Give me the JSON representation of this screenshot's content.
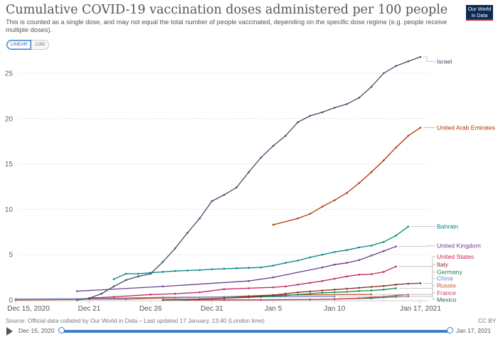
{
  "header": {
    "title": "Cumulative COVID-19 vaccination doses administered per 100 people",
    "subtitle": "This is counted as a single dose, and may not equal the total number of people vaccinated, depending on the specific dose regime (e.g. people receive multiple doses).",
    "logo_line1": "Our World",
    "logo_line2": "in Data"
  },
  "scale_toggle": {
    "linear": "LINEAR",
    "log": "LOG",
    "selected": "LINEAR"
  },
  "footer": {
    "source": "Source: Official data collated by Our World in Data – Last updated 17 January, 13:40 (London time)",
    "license": "CC BY"
  },
  "timeline": {
    "start": "Dec 15, 2020",
    "end": "Jan 17, 2021"
  },
  "chart_data": {
    "type": "line",
    "title": "Cumulative COVID-19 vaccination doses administered per 100 people",
    "xlabel": "",
    "ylabel": "",
    "x_start": "2020-12-15",
    "x_range_days": [
      0,
      33
    ],
    "ylim": [
      0,
      27.5
    ],
    "yticks": [
      0,
      5,
      10,
      15,
      20,
      25
    ],
    "xticks": [
      {
        "day": 0,
        "label": "Dec 15, 2020"
      },
      {
        "day": 6,
        "label": "Dec 21"
      },
      {
        "day": 11,
        "label": "Dec 26"
      },
      {
        "day": 16,
        "label": "Dec 31"
      },
      {
        "day": 21,
        "label": "Jan 5"
      },
      {
        "day": 26,
        "label": "Jan 10"
      },
      {
        "day": 33,
        "label": "Jan 17, 2021"
      }
    ],
    "grid": true,
    "legend": "right (end-of-line labels)",
    "series": [
      {
        "name": "Israel",
        "color": "#3c4e66",
        "points": [
          [
            5,
            0.0
          ],
          [
            6,
            0.2
          ],
          [
            7,
            0.7
          ],
          [
            8,
            1.5
          ],
          [
            9,
            2.2
          ],
          [
            10,
            2.6
          ],
          [
            11,
            2.9
          ],
          [
            12,
            4.2
          ],
          [
            13,
            5.7
          ],
          [
            14,
            7.4
          ],
          [
            15,
            9.0
          ],
          [
            16,
            10.9
          ],
          [
            17,
            11.6
          ],
          [
            18,
            12.4
          ],
          [
            19,
            14.1
          ],
          [
            20,
            15.7
          ],
          [
            21,
            17.0
          ],
          [
            22,
            18.1
          ],
          [
            23,
            19.6
          ],
          [
            24,
            20.3
          ],
          [
            25,
            20.7
          ],
          [
            26,
            21.2
          ],
          [
            27,
            21.6
          ],
          [
            28,
            22.3
          ],
          [
            29,
            23.5
          ],
          [
            30,
            25.0
          ],
          [
            31,
            25.8
          ],
          [
            32,
            26.3
          ],
          [
            33,
            26.8
          ]
        ]
      },
      {
        "name": "United Arab Emirates",
        "color": "#b13507",
        "points": [
          [
            21,
            8.3
          ],
          [
            23,
            9.0
          ],
          [
            24,
            9.5
          ],
          [
            25,
            10.3
          ],
          [
            26,
            11.0
          ],
          [
            27,
            11.8
          ],
          [
            28,
            12.9
          ],
          [
            29,
            14.1
          ],
          [
            30,
            15.4
          ],
          [
            31,
            16.8
          ],
          [
            32,
            18.1
          ],
          [
            33,
            19.0
          ]
        ]
      },
      {
        "name": "Bahrain",
        "color": "#00847e",
        "points": [
          [
            8,
            2.3
          ],
          [
            9,
            2.9
          ],
          [
            10,
            2.9
          ],
          [
            11,
            3.0
          ],
          [
            12,
            3.1
          ],
          [
            13,
            3.2
          ],
          [
            14,
            3.25
          ],
          [
            15,
            3.3
          ],
          [
            16,
            3.4
          ],
          [
            17,
            3.45
          ],
          [
            18,
            3.5
          ],
          [
            19,
            3.55
          ],
          [
            20,
            3.6
          ],
          [
            21,
            3.8
          ],
          [
            22,
            4.1
          ],
          [
            23,
            4.35
          ],
          [
            24,
            4.7
          ],
          [
            25,
            5.0
          ],
          [
            26,
            5.3
          ],
          [
            27,
            5.5
          ],
          [
            28,
            5.8
          ],
          [
            29,
            6.0
          ],
          [
            30,
            6.4
          ],
          [
            31,
            7.1
          ],
          [
            32,
            8.1
          ]
        ]
      },
      {
        "name": "United Kingdom",
        "color": "#6d3e91",
        "points": [
          [
            5,
            0.98
          ],
          [
            12,
            1.5
          ],
          [
            19,
            2.1
          ],
          [
            21,
            2.5
          ],
          [
            25,
            3.6
          ],
          [
            26,
            3.9
          ],
          [
            27,
            4.1
          ],
          [
            28,
            4.4
          ],
          [
            29,
            4.9
          ],
          [
            30,
            5.4
          ],
          [
            31,
            5.9
          ]
        ]
      },
      {
        "name": "United States",
        "color": "#c5265b",
        "points": [
          [
            6,
            0.2
          ],
          [
            8,
            0.35
          ],
          [
            11,
            0.6
          ],
          [
            13,
            0.7
          ],
          [
            15,
            0.85
          ],
          [
            17,
            1.2
          ],
          [
            19,
            1.3
          ],
          [
            21,
            1.4
          ],
          [
            22,
            1.5
          ],
          [
            23,
            1.7
          ],
          [
            24,
            1.9
          ],
          [
            25,
            2.1
          ],
          [
            26,
            2.35
          ],
          [
            27,
            2.6
          ],
          [
            28,
            2.8
          ],
          [
            29,
            2.85
          ],
          [
            30,
            3.1
          ],
          [
            31,
            3.7
          ]
        ]
      },
      {
        "name": "Italy",
        "color": "#8b2a2a",
        "points": [
          [
            12,
            0.02
          ],
          [
            15,
            0.1
          ],
          [
            17,
            0.2
          ],
          [
            19,
            0.35
          ],
          [
            20,
            0.45
          ],
          [
            21,
            0.55
          ],
          [
            22,
            0.7
          ],
          [
            23,
            0.85
          ],
          [
            24,
            0.95
          ],
          [
            25,
            1.05
          ],
          [
            26,
            1.15
          ],
          [
            27,
            1.25
          ],
          [
            28,
            1.35
          ],
          [
            29,
            1.45
          ],
          [
            30,
            1.55
          ],
          [
            31,
            1.7
          ],
          [
            32,
            1.8
          ],
          [
            33,
            1.85
          ]
        ]
      },
      {
        "name": "Germany",
        "color": "#18864b",
        "points": [
          [
            12,
            0.0
          ],
          [
            15,
            0.1
          ],
          [
            17,
            0.2
          ],
          [
            19,
            0.3
          ],
          [
            20,
            0.35
          ],
          [
            21,
            0.45
          ],
          [
            22,
            0.5
          ],
          [
            23,
            0.6
          ],
          [
            24,
            0.7
          ],
          [
            25,
            0.8
          ],
          [
            26,
            0.85
          ],
          [
            27,
            0.9
          ],
          [
            28,
            1.0
          ],
          [
            29,
            1.05
          ],
          [
            30,
            1.15
          ],
          [
            31,
            1.3
          ]
        ]
      },
      {
        "name": "China",
        "color": "#6b82c3",
        "points": [
          [
            0,
            0.1
          ],
          [
            6,
            0.15
          ],
          [
            12,
            0.3
          ],
          [
            19,
            0.35
          ],
          [
            26,
            0.4
          ]
        ]
      },
      {
        "name": "Russia",
        "color": "#c1582c",
        "points": [
          [
            0,
            0.0
          ],
          [
            5,
            0.05
          ],
          [
            6,
            0.1
          ],
          [
            9,
            0.1
          ],
          [
            13,
            0.25
          ],
          [
            17,
            0.35
          ],
          [
            19,
            0.45
          ],
          [
            21,
            0.55
          ],
          [
            29,
            0.62
          ]
        ]
      },
      {
        "name": "France",
        "color": "#d73c50",
        "points": [
          [
            14,
            0.0
          ],
          [
            20,
            0.02
          ],
          [
            24,
            0.05
          ],
          [
            26,
            0.1
          ],
          [
            28,
            0.2
          ],
          [
            30,
            0.4
          ],
          [
            31,
            0.5
          ],
          [
            32,
            0.6
          ]
        ]
      },
      {
        "name": "Mexico",
        "color": "#286a5a",
        "points": [
          [
            12,
            0.0
          ],
          [
            17,
            0.02
          ],
          [
            20,
            0.03
          ],
          [
            24,
            0.05
          ],
          [
            26,
            0.1
          ],
          [
            29,
            0.2
          ],
          [
            30,
            0.3
          ],
          [
            31,
            0.35
          ],
          [
            32,
            0.4
          ]
        ]
      }
    ],
    "labels": [
      {
        "name": "Israel",
        "label_y_value": 26.3
      },
      {
        "name": "United Arab Emirates",
        "label_y_value": 19.0
      },
      {
        "name": "Bahrain",
        "label_y_value": 8.1
      },
      {
        "name": "United Kingdom",
        "label_y_value": 6.0
      },
      {
        "name": "United States",
        "label_y_value": 4.8
      },
      {
        "name": "Italy",
        "label_y_value": 3.9
      },
      {
        "name": "Germany",
        "label_y_value": 3.1
      },
      {
        "name": "China",
        "label_y_value": 2.4
      },
      {
        "name": "Russia",
        "label_y_value": 1.6
      },
      {
        "name": "France",
        "label_y_value": 0.8
      },
      {
        "name": "Mexico",
        "label_y_value": 0.05
      }
    ]
  }
}
